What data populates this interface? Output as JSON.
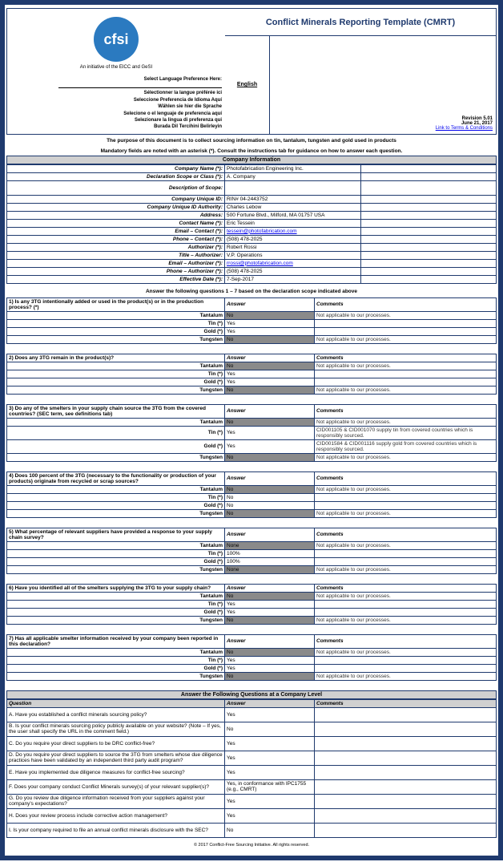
{
  "colors": {
    "primary": "#1f3a6e",
    "gray": "#8a8a8a",
    "header_gray": "#d0d0d0",
    "logo_bg": "#2b7ac0"
  },
  "logo": {
    "text": "cfsi",
    "sub": "An initiative of the EICC and GeSI"
  },
  "lang": {
    "header": "Select Language Preference Here:",
    "lines": [
      "Sélectionner la langue préférée ici",
      "Seleccione Preferencia de Idioma Aquí",
      "Wählen sie hier die Sprache",
      "Selecione o el lenguaje de preferencia aquí",
      "Selezionare la lingua di preferenza qui",
      "Burada Dil Tercihini Belirleyin"
    ]
  },
  "title": "Conflict Minerals Reporting Template (CMRT)",
  "english": "English",
  "revision": "Revision 5.01",
  "date": "June 21, 2017",
  "terms": "Link to Terms & Conditions",
  "purpose": "The purpose of this document is to collect sourcing information on tin, tantalum, tungsten and gold used in products",
  "mandatory": "Mandatory fields are noted with an asterisk (*).  Consult the instructions tab for guidance on how to answer each question.",
  "company_info_hdr": "Company Information",
  "info": [
    {
      "l": "Company Name (*):",
      "v": "Photofabrication Engineering Inc.",
      "g": false
    },
    {
      "l": "Declaration Scope or Class (*):",
      "v": "A. Company",
      "g": false
    },
    {
      "l": "Description of Scope:",
      "v": "",
      "g": false,
      "tall": true
    },
    {
      "l": "Company Unique ID:",
      "v": "RIN# 04-2443752",
      "g": false
    },
    {
      "l": "Company Unique ID Authority:",
      "v": "Charles Lebow",
      "g": false
    },
    {
      "l": "Address:",
      "v": "500 Fortune Blvd., Milford, MA 01757 USA",
      "g": false
    },
    {
      "l": "Contact Name (*):",
      "v": "Eric Tessein",
      "g": false
    },
    {
      "l": "Email – Contact (*):",
      "v": "tessein@photofabrication.com",
      "g": false,
      "link": true
    },
    {
      "l": "Phone – Contact (*):",
      "v": "(508) 478-2025",
      "g": false
    },
    {
      "l": "Authorizer (*):",
      "v": "Robert Rossi",
      "g": false
    },
    {
      "l": "Title – Authorizer:",
      "v": "V.P. Operations",
      "g": false
    },
    {
      "l": "Email – Authorizer (*):",
      "v": "rrossi@photofabrication.com",
      "g": false,
      "link": true
    },
    {
      "l": "Phone – Authorizer (*):",
      "v": "(508) 478-2025",
      "g": false
    },
    {
      "l": "Effective Date (*):",
      "v": "7-Sep-2017",
      "g": false
    }
  ],
  "q_intro": "Answer the following questions 1 – 7 based on the declaration scope indicated above",
  "answer_hdr": "Answer",
  "comments_hdr": "Comments",
  "na_txt": "Not applicable to our processes.",
  "metals": [
    "Tantalum",
    "Tin (*)",
    "Gold (*)",
    "Tungsten"
  ],
  "q1": {
    "title": "1)  Is any 3TG intentionally added or used in the product(s) or in the production process? (*)",
    "rows": [
      {
        "a": "No",
        "g": true,
        "c": "Not applicable to our processes."
      },
      {
        "a": "Yes",
        "g": false,
        "c": ""
      },
      {
        "a": "Yes",
        "g": false,
        "c": ""
      },
      {
        "a": "No",
        "g": true,
        "c": "Not applicable to our processes."
      }
    ]
  },
  "q2": {
    "title": "2)  Does any 3TG remain in the product(s)?",
    "rows": [
      {
        "a": "No",
        "g": true,
        "c": "Not applicable to our processes."
      },
      {
        "a": "Yes",
        "g": false,
        "c": ""
      },
      {
        "a": "Yes",
        "g": false,
        "c": ""
      },
      {
        "a": "No",
        "g": true,
        "c": "Not applicable to our processes."
      }
    ]
  },
  "q3": {
    "title": "3)  Do any of the smelters in your supply chain source the 3TG from the covered countries? (SEC term, see definitions tab)",
    "rows": [
      {
        "a": "No",
        "g": true,
        "c": "Not applicable to our processes."
      },
      {
        "a": "Yes",
        "g": false,
        "c": "CID001105 & CID001070 supply tin from covered countries which is responsibly sourced."
      },
      {
        "a": "Yes",
        "g": false,
        "c": "CID001584 & CID001116 supply gold from covered countries which is responsibly sourced."
      },
      {
        "a": "No",
        "g": true,
        "c": "Not applicable to our processes."
      }
    ]
  },
  "q4": {
    "title": "4)  Does 100 percent of the 3TG (necessary to the functionality or production of your products) originate from recycled or scrap sources?",
    "rows": [
      {
        "a": "No",
        "g": true,
        "c": "Not applicable to our processes."
      },
      {
        "a": "No",
        "g": false,
        "c": ""
      },
      {
        "a": "No",
        "g": false,
        "c": ""
      },
      {
        "a": "No",
        "g": true,
        "c": "Not applicable to our processes."
      }
    ]
  },
  "q5": {
    "title": "5)  What percentage of relevant suppliers have provided a response to your supply chain survey?",
    "rows": [
      {
        "a": "None",
        "g": true,
        "c": "Not applicable to our processes."
      },
      {
        "a": "100%",
        "g": false,
        "c": ""
      },
      {
        "a": "100%",
        "g": false,
        "c": ""
      },
      {
        "a": "None",
        "g": true,
        "c": "Not applicable to our processes."
      }
    ]
  },
  "q6": {
    "title": "6)  Have you identified all of the smelters supplying the 3TG to your supply chain?",
    "rows": [
      {
        "a": "No",
        "g": true,
        "c": "Not applicable to our processes."
      },
      {
        "a": "Yes",
        "g": false,
        "c": ""
      },
      {
        "a": "Yes",
        "g": false,
        "c": ""
      },
      {
        "a": "No",
        "g": true,
        "c": "Not applicable to our processes."
      }
    ]
  },
  "q7": {
    "title": "7)  Has all applicable smelter information received by your company been reported in this declaration?",
    "rows": [
      {
        "a": "No",
        "g": true,
        "c": "Not applicable to our processes."
      },
      {
        "a": "Yes",
        "g": false,
        "c": ""
      },
      {
        "a": "Yes",
        "g": false,
        "c": ""
      },
      {
        "a": "No",
        "g": true,
        "c": "Not applicable to our processes."
      }
    ]
  },
  "company_level_hdr": "Answer the Following Questions at a Company Level",
  "company_q_hdr": {
    "q": "Question",
    "a": "Answer",
    "c": "Comments"
  },
  "company_q": [
    {
      "q": "A. Have you established a conflict minerals sourcing policy?",
      "a": "Yes",
      "c": ""
    },
    {
      "q": "B. Is your conflict minerals sourcing policy publicly available on your website? (Note – If yes, the user shall specify the URL in the comment field.)",
      "a": "No",
      "c": ""
    },
    {
      "q": "C. Do you require your direct suppliers to be DRC conflict-free?",
      "a": "Yes",
      "c": ""
    },
    {
      "q": "D. Do you require your direct suppliers to source the 3TG from smelters whose due diligence practices have been validated by an independent third party audit program?",
      "a": "Yes",
      "c": ""
    },
    {
      "q": "E. Have you implemented due diligence measures for conflict-free sourcing?",
      "a": "Yes",
      "c": ""
    },
    {
      "q": "F. Does your company conduct Conflict Minerals survey(s) of your relevant supplier(s)?",
      "a": "Yes, in conformance with IPC1755 (e.g., CMRT)",
      "c": ""
    },
    {
      "q": "G. Do you review due diligence information received from your suppliers against your company's expectations?",
      "a": "Yes",
      "c": ""
    },
    {
      "q": "H. Does your review process include corrective action management?",
      "a": "Yes",
      "c": ""
    },
    {
      "q": "I. Is your company required to file an annual conflict minerals disclosure with the SEC?",
      "a": "No",
      "c": ""
    }
  ],
  "footer": "© 2017 Conflict-Free Sourcing Initiative. All rights reserved."
}
